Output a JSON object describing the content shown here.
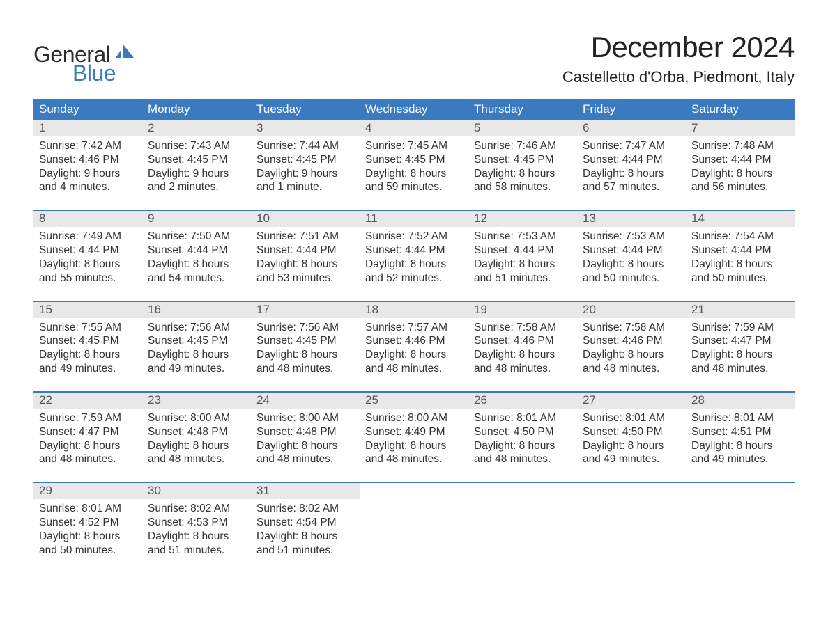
{
  "logo": {
    "text1": "General",
    "text2": "Blue"
  },
  "title": "December 2024",
  "subtitle": "Castelletto d'Orba, Piedmont, Italy",
  "colors": {
    "header_blue": "#3a7ac0",
    "daynum_bg": "#e8e8e8",
    "text": "#333333",
    "background": "#ffffff"
  },
  "weekdays": [
    "Sunday",
    "Monday",
    "Tuesday",
    "Wednesday",
    "Thursday",
    "Friday",
    "Saturday"
  ],
  "labels": {
    "sunrise": "Sunrise:",
    "sunset": "Sunset:",
    "daylight": "Daylight:"
  },
  "weeks": [
    [
      {
        "n": "1",
        "sunrise": "7:42 AM",
        "sunset": "4:46 PM",
        "dl1": "9 hours",
        "dl2": "and 4 minutes."
      },
      {
        "n": "2",
        "sunrise": "7:43 AM",
        "sunset": "4:45 PM",
        "dl1": "9 hours",
        "dl2": "and 2 minutes."
      },
      {
        "n": "3",
        "sunrise": "7:44 AM",
        "sunset": "4:45 PM",
        "dl1": "9 hours",
        "dl2": "and 1 minute."
      },
      {
        "n": "4",
        "sunrise": "7:45 AM",
        "sunset": "4:45 PM",
        "dl1": "8 hours",
        "dl2": "and 59 minutes."
      },
      {
        "n": "5",
        "sunrise": "7:46 AM",
        "sunset": "4:45 PM",
        "dl1": "8 hours",
        "dl2": "and 58 minutes."
      },
      {
        "n": "6",
        "sunrise": "7:47 AM",
        "sunset": "4:44 PM",
        "dl1": "8 hours",
        "dl2": "and 57 minutes."
      },
      {
        "n": "7",
        "sunrise": "7:48 AM",
        "sunset": "4:44 PM",
        "dl1": "8 hours",
        "dl2": "and 56 minutes."
      }
    ],
    [
      {
        "n": "8",
        "sunrise": "7:49 AM",
        "sunset": "4:44 PM",
        "dl1": "8 hours",
        "dl2": "and 55 minutes."
      },
      {
        "n": "9",
        "sunrise": "7:50 AM",
        "sunset": "4:44 PM",
        "dl1": "8 hours",
        "dl2": "and 54 minutes."
      },
      {
        "n": "10",
        "sunrise": "7:51 AM",
        "sunset": "4:44 PM",
        "dl1": "8 hours",
        "dl2": "and 53 minutes."
      },
      {
        "n": "11",
        "sunrise": "7:52 AM",
        "sunset": "4:44 PM",
        "dl1": "8 hours",
        "dl2": "and 52 minutes."
      },
      {
        "n": "12",
        "sunrise": "7:53 AM",
        "sunset": "4:44 PM",
        "dl1": "8 hours",
        "dl2": "and 51 minutes."
      },
      {
        "n": "13",
        "sunrise": "7:53 AM",
        "sunset": "4:44 PM",
        "dl1": "8 hours",
        "dl2": "and 50 minutes."
      },
      {
        "n": "14",
        "sunrise": "7:54 AM",
        "sunset": "4:44 PM",
        "dl1": "8 hours",
        "dl2": "and 50 minutes."
      }
    ],
    [
      {
        "n": "15",
        "sunrise": "7:55 AM",
        "sunset": "4:45 PM",
        "dl1": "8 hours",
        "dl2": "and 49 minutes."
      },
      {
        "n": "16",
        "sunrise": "7:56 AM",
        "sunset": "4:45 PM",
        "dl1": "8 hours",
        "dl2": "and 49 minutes."
      },
      {
        "n": "17",
        "sunrise": "7:56 AM",
        "sunset": "4:45 PM",
        "dl1": "8 hours",
        "dl2": "and 48 minutes."
      },
      {
        "n": "18",
        "sunrise": "7:57 AM",
        "sunset": "4:46 PM",
        "dl1": "8 hours",
        "dl2": "and 48 minutes."
      },
      {
        "n": "19",
        "sunrise": "7:58 AM",
        "sunset": "4:46 PM",
        "dl1": "8 hours",
        "dl2": "and 48 minutes."
      },
      {
        "n": "20",
        "sunrise": "7:58 AM",
        "sunset": "4:46 PM",
        "dl1": "8 hours",
        "dl2": "and 48 minutes."
      },
      {
        "n": "21",
        "sunrise": "7:59 AM",
        "sunset": "4:47 PM",
        "dl1": "8 hours",
        "dl2": "and 48 minutes."
      }
    ],
    [
      {
        "n": "22",
        "sunrise": "7:59 AM",
        "sunset": "4:47 PM",
        "dl1": "8 hours",
        "dl2": "and 48 minutes."
      },
      {
        "n": "23",
        "sunrise": "8:00 AM",
        "sunset": "4:48 PM",
        "dl1": "8 hours",
        "dl2": "and 48 minutes."
      },
      {
        "n": "24",
        "sunrise": "8:00 AM",
        "sunset": "4:48 PM",
        "dl1": "8 hours",
        "dl2": "and 48 minutes."
      },
      {
        "n": "25",
        "sunrise": "8:00 AM",
        "sunset": "4:49 PM",
        "dl1": "8 hours",
        "dl2": "and 48 minutes."
      },
      {
        "n": "26",
        "sunrise": "8:01 AM",
        "sunset": "4:50 PM",
        "dl1": "8 hours",
        "dl2": "and 48 minutes."
      },
      {
        "n": "27",
        "sunrise": "8:01 AM",
        "sunset": "4:50 PM",
        "dl1": "8 hours",
        "dl2": "and 49 minutes."
      },
      {
        "n": "28",
        "sunrise": "8:01 AM",
        "sunset": "4:51 PM",
        "dl1": "8 hours",
        "dl2": "and 49 minutes."
      }
    ],
    [
      {
        "n": "29",
        "sunrise": "8:01 AM",
        "sunset": "4:52 PM",
        "dl1": "8 hours",
        "dl2": "and 50 minutes."
      },
      {
        "n": "30",
        "sunrise": "8:02 AM",
        "sunset": "4:53 PM",
        "dl1": "8 hours",
        "dl2": "and 51 minutes."
      },
      {
        "n": "31",
        "sunrise": "8:02 AM",
        "sunset": "4:54 PM",
        "dl1": "8 hours",
        "dl2": "and 51 minutes."
      },
      null,
      null,
      null,
      null
    ]
  ]
}
